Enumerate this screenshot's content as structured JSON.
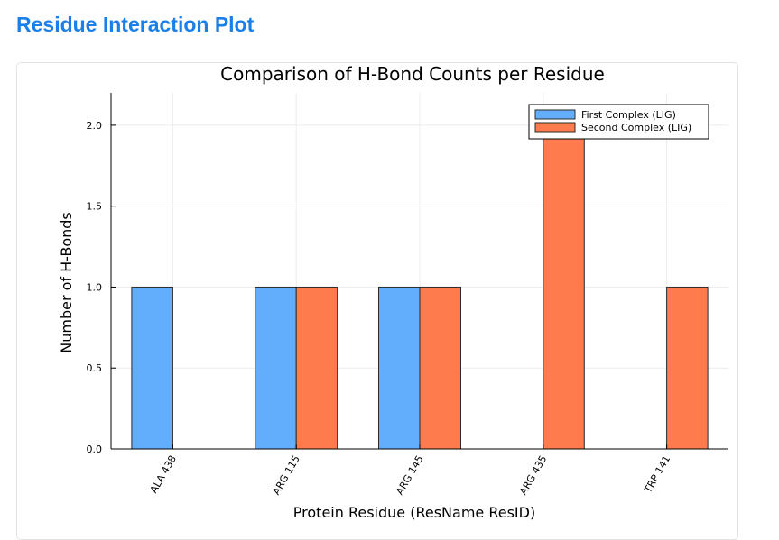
{
  "page": {
    "title": "Residue Interaction Plot"
  },
  "colors": {
    "title": "#1a7fe8",
    "series_first": "#63adfd",
    "series_second": "#fd7b4c",
    "bar_edge": "#2a2a2a",
    "grid": "#ececec",
    "axis": "#000000"
  },
  "chart_data": {
    "type": "bar",
    "title": "Comparison of H-Bond Counts per Residue",
    "xlabel": "Protein Residue (ResName ResID)",
    "ylabel": "Number of H-Bonds",
    "categories": [
      "ALA 438",
      "ARG 115",
      "ARG 145",
      "ARG 435",
      "TRP 141"
    ],
    "series": [
      {
        "name": "First Complex (LIG)",
        "values": [
          1,
          1,
          1,
          0,
          0
        ]
      },
      {
        "name": "Second Complex (LIG)",
        "values": [
          0,
          1,
          1,
          2,
          1
        ]
      }
    ],
    "ylim": [
      0,
      2.2
    ],
    "yticks": [
      "0.0",
      "0.5",
      "1.0",
      "1.5",
      "2.0"
    ],
    "grid": true,
    "legend_position": "top-right"
  }
}
